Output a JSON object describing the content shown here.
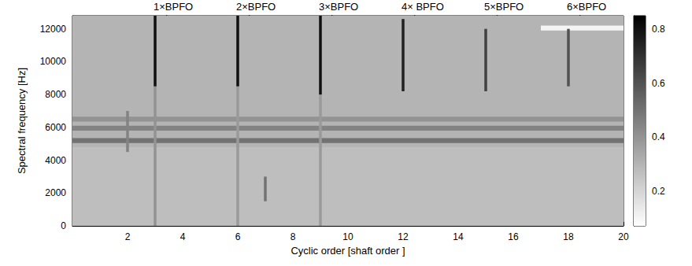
{
  "chart_data": {
    "type": "heatmap",
    "xlabel": "Cyclic order [shaft order ]",
    "ylabel": "Spectral frequency [Hz]",
    "xlim": [
      0,
      20
    ],
    "xticks": [
      2,
      4,
      6,
      8,
      10,
      12,
      14,
      16,
      18,
      20
    ],
    "ylim": [
      0,
      12800
    ],
    "yticks": [
      0,
      2000,
      4000,
      6000,
      8000,
      10000,
      12000
    ],
    "colorbar_range": [
      0.07,
      0.85
    ],
    "colorbar_ticks": [
      0.2,
      0.4,
      0.6,
      0.8
    ],
    "cells": [
      [
        0,
        20,
        0,
        4800,
        0.27
      ],
      [
        0,
        20,
        4800,
        12800,
        0.3
      ],
      [
        0,
        20,
        5050,
        5350,
        0.5
      ],
      [
        0,
        20,
        5800,
        6100,
        0.45
      ],
      [
        0,
        20,
        6350,
        6650,
        0.4
      ],
      [
        17,
        20,
        11900,
        12200,
        0.1
      ],
      [
        1.95,
        2.05,
        4500,
        7000,
        0.45
      ],
      [
        6.95,
        7.05,
        1500,
        3000,
        0.5
      ],
      [
        2.95,
        3.05,
        0,
        8500,
        0.4
      ],
      [
        5.95,
        6.05,
        0,
        8500,
        0.38
      ],
      [
        8.95,
        9.05,
        0,
        8000,
        0.38
      ],
      [
        2.95,
        3.05,
        8500,
        12800,
        0.8
      ],
      [
        5.95,
        6.05,
        8500,
        12800,
        0.8
      ],
      [
        8.95,
        9.05,
        8000,
        12800,
        0.8
      ],
      [
        11.95,
        12.05,
        8200,
        12600,
        0.75
      ],
      [
        14.95,
        15.05,
        8200,
        12000,
        0.65
      ],
      [
        17.95,
        18.05,
        8500,
        12000,
        0.6
      ]
    ],
    "annotations": [
      {
        "text": "1×BPFO",
        "x": 3
      },
      {
        "text": "2×BPFO",
        "x": 6
      },
      {
        "text": "3×BPFO",
        "x": 9
      },
      {
        "text": "4× BPFO",
        "x": 12
      },
      {
        "text": "5×BPFO",
        "x": 15
      },
      {
        "text": "6×BPFO",
        "x": 18
      }
    ]
  }
}
